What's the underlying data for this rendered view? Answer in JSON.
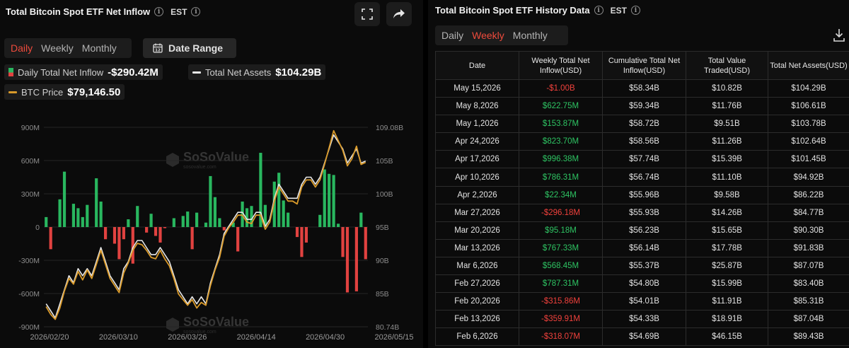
{
  "left_panel": {
    "title": "Total Bitcoin Spot ETF Net Inflow",
    "timezone": "EST",
    "tabs": [
      "Daily",
      "Weekly",
      "Monthly"
    ],
    "active_tab": "Daily",
    "date_range_label": "Date Range",
    "legend": {
      "inflow_label": "Daily Total Net Inflow",
      "inflow_value": "-$290.42M",
      "assets_label": "Total Net Assets",
      "assets_value": "$104.29B",
      "btc_label": "BTC Price",
      "btc_value": "$79,146.50"
    },
    "watermark": "SoSoValue",
    "watermark_sub": "sosovalue.com"
  },
  "right_panel": {
    "title": "Total Bitcoin Spot ETF History Data",
    "timezone": "EST",
    "tabs": [
      "Daily",
      "Weekly",
      "Monthly"
    ],
    "active_tab": "Weekly",
    "columns": [
      "Date",
      "Weekly Total Net Inflow(USD)",
      "Cumulative Total Net Inflow(USD)",
      "Total Value Traded(USD)",
      "Total Net Assets(USD)"
    ],
    "rows": [
      [
        "May 15,2026",
        "-$1.00B",
        "$58.34B",
        "$10.82B",
        "$104.29B"
      ],
      [
        "May 8,2026",
        "$622.75M",
        "$59.34B",
        "$11.76B",
        "$106.61B"
      ],
      [
        "May 1,2026",
        "$153.87M",
        "$58.72B",
        "$9.51B",
        "$103.78B"
      ],
      [
        "Apr 24,2026",
        "$823.70M",
        "$58.56B",
        "$11.26B",
        "$102.64B"
      ],
      [
        "Apr 17,2026",
        "$996.38M",
        "$57.74B",
        "$15.39B",
        "$101.45B"
      ],
      [
        "Apr 10,2026",
        "$786.31M",
        "$56.74B",
        "$11.10B",
        "$94.92B"
      ],
      [
        "Apr 2,2026",
        "$22.34M",
        "$55.96B",
        "$9.58B",
        "$86.22B"
      ],
      [
        "Mar 27,2026",
        "-$296.18M",
        "$55.93B",
        "$14.26B",
        "$84.77B"
      ],
      [
        "Mar 20,2026",
        "$95.18M",
        "$56.23B",
        "$15.65B",
        "$90.30B"
      ],
      [
        "Mar 13,2026",
        "$767.33M",
        "$56.14B",
        "$17.78B",
        "$91.83B"
      ],
      [
        "Mar 6,2026",
        "$568.45M",
        "$55.37B",
        "$25.87B",
        "$87.07B"
      ],
      [
        "Feb 27,2026",
        "$787.31M",
        "$54.80B",
        "$15.99B",
        "$83.40B"
      ],
      [
        "Feb 20,2026",
        "-$315.86M",
        "$54.01B",
        "$11.91B",
        "$85.31B"
      ],
      [
        "Feb 13,2026",
        "-$359.91M",
        "$54.33B",
        "$18.91B",
        "$87.04B"
      ],
      [
        "Feb 6,2026",
        "-$318.07M",
        "$54.69B",
        "$46.15B",
        "$89.43B"
      ]
    ]
  },
  "colors": {
    "positive": "#29b75f",
    "negative": "#e14240",
    "assets_line": "#e8e8e8",
    "btc_line": "#d99a2a",
    "accent": "#ef4b3c"
  },
  "chart_data": {
    "type": "bar",
    "title": "Total Bitcoin Spot ETF Net Inflow",
    "y_left_ticks": [
      "900M",
      "600M",
      "300M",
      "0",
      "-300M",
      "-600M",
      "-900M"
    ],
    "y_left_range": [
      -900,
      900
    ],
    "y_right_ticks": [
      "109.08B",
      "105B",
      "100B",
      "95B",
      "90B",
      "85B",
      "80.74B"
    ],
    "y_right_range": [
      80.74,
      109.08
    ],
    "x_ticks": [
      "2026/02/20",
      "2026/03/10",
      "2026/03/26",
      "2026/04/14",
      "2026/04/30",
      "2026/05/15"
    ],
    "series": [
      {
        "name": "Daily Total Net Inflow",
        "unit": "M",
        "values": [
          90,
          -200,
          0,
          250,
          500,
          0,
          210,
          170,
          90,
          200,
          0,
          440,
          230,
          -110,
          0,
          -150,
          -290,
          -110,
          70,
          -330,
          190,
          0,
          -50,
          120,
          -80,
          -140,
          -10,
          0,
          80,
          0,
          100,
          140,
          -200,
          130,
          0,
          40,
          460,
          270,
          80,
          -30,
          0,
          40,
          -220,
          230,
          170,
          190,
          0,
          670,
          200,
          0,
          410,
          490,
          240,
          130,
          0,
          -90,
          -270,
          -140,
          0,
          0,
          110,
          520,
          480,
          470,
          30,
          -270,
          -590,
          0,
          -580,
          130,
          -290
        ],
        "color_rule": "green if >= 0, red if < 0"
      },
      {
        "name": "Total Net Assets",
        "unit": "B",
        "values": [
          84,
          83,
          82,
          84,
          86,
          88,
          87,
          89,
          88,
          89,
          88,
          90,
          92,
          90,
          88,
          87,
          86,
          89,
          90,
          92,
          93,
          93,
          92,
          91,
          91,
          92,
          91,
          90,
          88,
          86,
          85,
          84,
          85,
          84,
          85,
          84,
          87,
          89,
          91,
          94,
          95,
          96,
          97,
          97,
          96,
          96,
          97,
          97,
          95,
          96,
          99,
          101,
          100,
          99,
          99,
          99,
          101,
          102,
          102,
          101,
          102,
          104,
          106,
          108,
          107,
          106,
          104,
          105,
          106,
          104,
          104.29
        ]
      },
      {
        "name": "BTC Price",
        "unit": "B-axis scaled",
        "values": [
          83.6,
          82.5,
          81.8,
          83.4,
          85.8,
          87.6,
          86.8,
          88.6,
          87.4,
          88.8,
          87.6,
          89.6,
          91.6,
          89.6,
          87.6,
          86.6,
          85.6,
          88.4,
          89.8,
          91.6,
          92.6,
          92.4,
          91.6,
          90.6,
          90.4,
          91.6,
          90.4,
          89.4,
          87.6,
          85.4,
          84.6,
          83.8,
          84.6,
          83.4,
          84.2,
          83.8,
          86.6,
          88.8,
          90.6,
          93.6,
          94.8,
          95.6,
          96.6,
          96.6,
          95.6,
          95.4,
          96.6,
          96.6,
          94.6,
          95.6,
          98.6,
          100.6,
          99.6,
          98.6,
          98.6,
          98.2,
          100.6,
          101.6,
          101.6,
          100.6,
          101.6,
          103.8,
          106.2,
          108.6,
          107.2,
          105.8,
          103.6,
          104.6,
          106.4,
          103.8,
          104.1
        ]
      }
    ]
  }
}
